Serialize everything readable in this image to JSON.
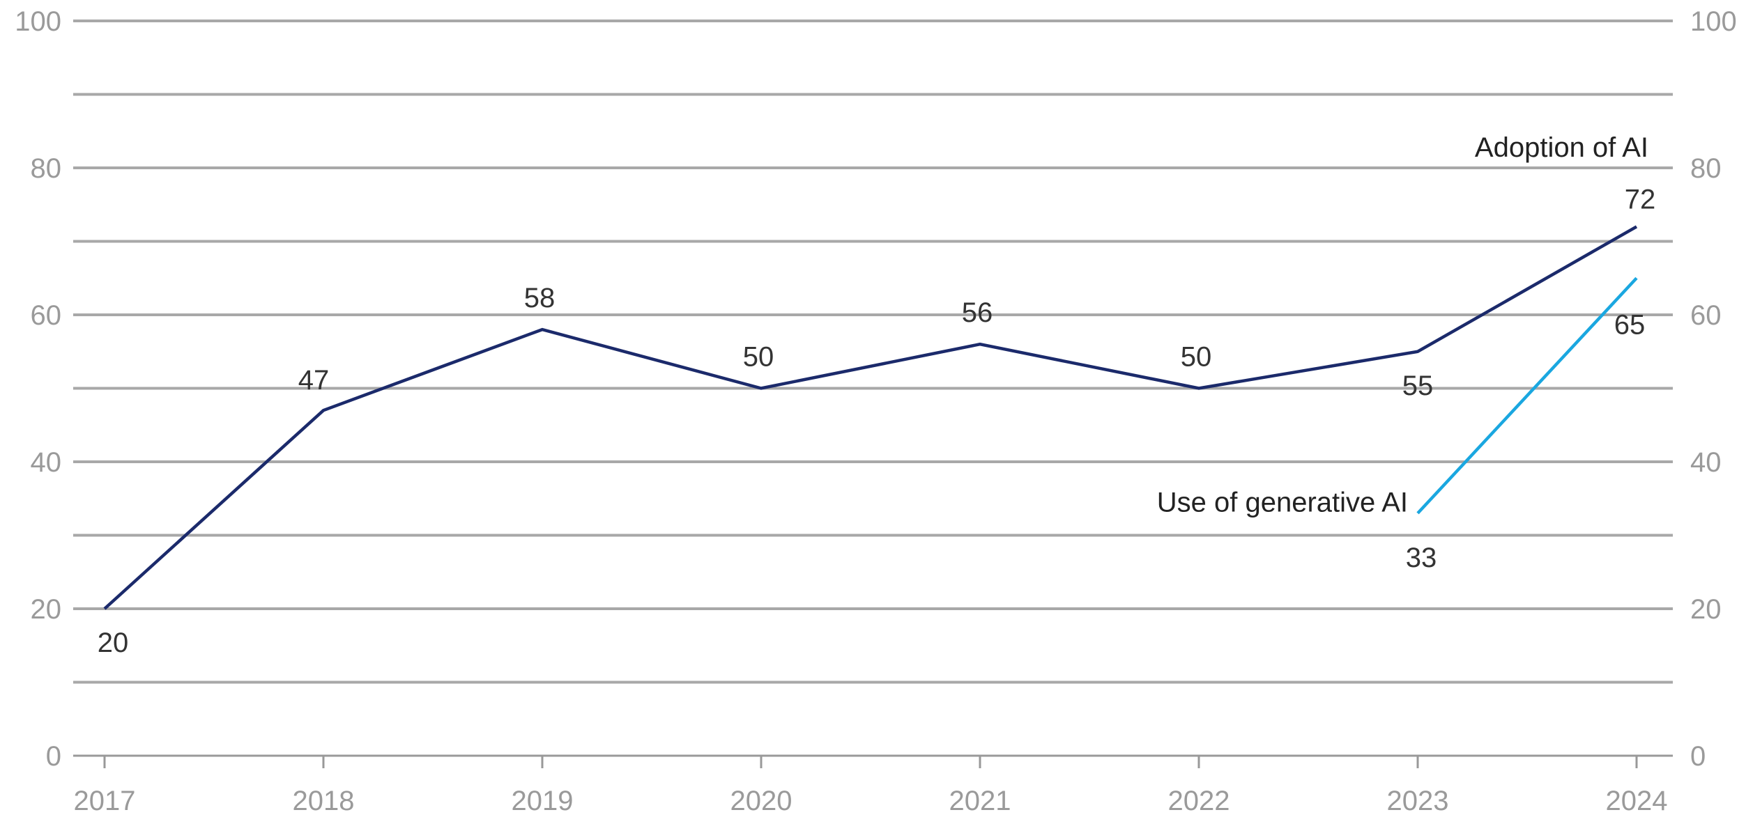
{
  "chart_data": {
    "type": "line",
    "x": [
      "2017",
      "2018",
      "2019",
      "2020",
      "2021",
      "2022",
      "2023",
      "2024"
    ],
    "ylim": [
      0,
      100
    ],
    "yticks": [
      "0",
      "20",
      "40",
      "60",
      "80",
      "100"
    ],
    "grid": true,
    "secondary_y_axis": true,
    "series": [
      {
        "name": "Adoption of AI",
        "color": "#1b2a6b",
        "points": [
          {
            "x": "2017",
            "y": 20,
            "label": "20"
          },
          {
            "x": "2018",
            "y": 47,
            "label": "47"
          },
          {
            "x": "2019",
            "y": 58,
            "label": "58"
          },
          {
            "x": "2020",
            "y": 50,
            "label": "50"
          },
          {
            "x": "2021",
            "y": 56,
            "label": "56"
          },
          {
            "x": "2022",
            "y": 50,
            "label": "50"
          },
          {
            "x": "2023",
            "y": 55,
            "label": "55"
          },
          {
            "x": "2024",
            "y": 72,
            "label": "72"
          }
        ]
      },
      {
        "name": "Use of generative AI",
        "color": "#1aa7e0",
        "points": [
          {
            "x": "2023",
            "y": 33,
            "label": "33"
          },
          {
            "x": "2024",
            "y": 65,
            "label": "65"
          }
        ]
      }
    ]
  }
}
